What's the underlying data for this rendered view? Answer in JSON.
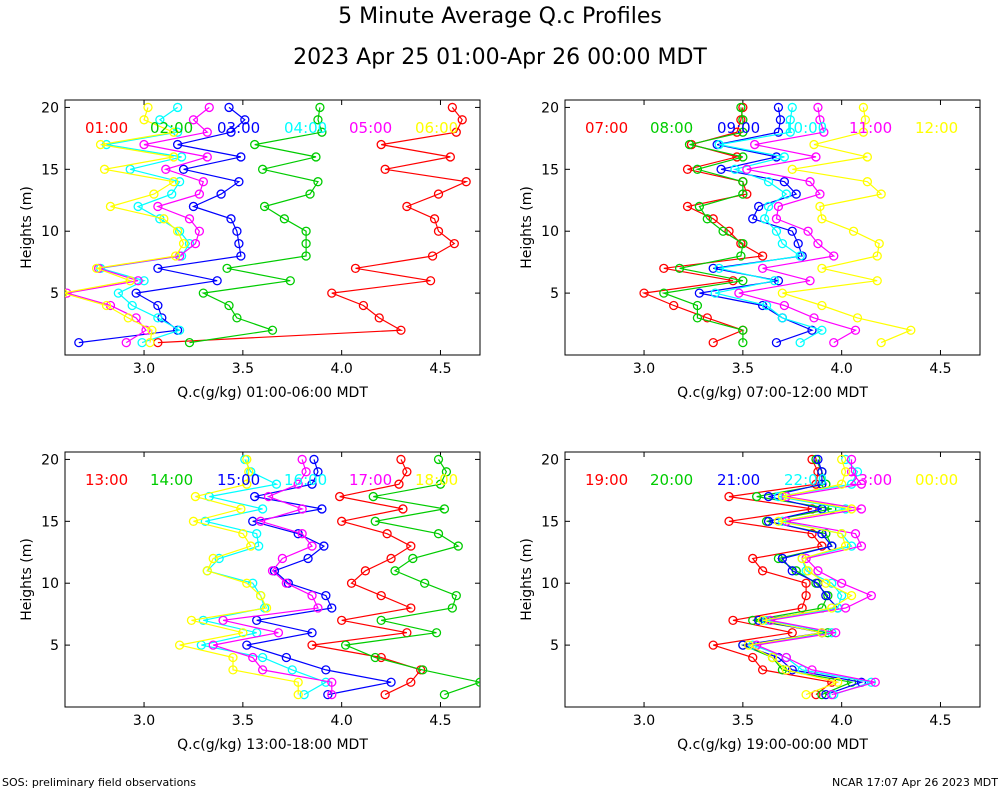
{
  "title": "5 Minute Average Q.c Profiles",
  "subtitle": "2023 Apr 25 01:00-Apr 26 00:00 MDT",
  "footer_left": "SOS: preliminary field observations",
  "footer_right": "NCAR 17:07 Apr 26 2023 MDT",
  "colors": [
    "#ff0000",
    "#00cc00",
    "#0000ff",
    "#00ffff",
    "#ff00ff",
    "#ffff00"
  ],
  "chart_data": [
    {
      "type": "line",
      "ylabel": "Heights (m)",
      "xlabel": "Q.c(g/kg) 01:00-06:00 MDT",
      "xlim": [
        2.6,
        4.7
      ],
      "ylim": [
        0,
        20.6
      ],
      "xticks": [
        3.0,
        3.5,
        4.0,
        4.5
      ],
      "xtick_labels": [
        "3.0",
        "3.5",
        "4.0",
        "4.5"
      ],
      "yticks": [
        5,
        10,
        15,
        20
      ],
      "ytick_labels": [
        "5",
        "10",
        "15",
        "20"
      ],
      "heights": [
        1,
        2,
        3,
        4,
        5,
        6,
        7,
        8,
        9,
        10,
        11,
        12,
        13,
        14,
        15,
        16,
        17,
        18,
        19,
        20
      ],
      "series": [
        {
          "name": "01:00",
          "values": [
            3.07,
            4.3,
            4.19,
            4.11,
            3.95,
            4.45,
            4.07,
            4.46,
            4.57,
            4.49,
            4.47,
            4.33,
            4.49,
            4.63,
            4.22,
            4.55,
            4.2,
            4.58,
            4.61,
            4.56
          ]
        },
        {
          "name": "02:00",
          "values": [
            3.23,
            3.65,
            3.47,
            3.43,
            3.3,
            3.74,
            3.42,
            3.82,
            3.82,
            3.82,
            3.71,
            3.61,
            3.84,
            3.88,
            3.6,
            3.87,
            3.56,
            3.9,
            3.88,
            3.89
          ]
        },
        {
          "name": "03:00",
          "values": [
            2.67,
            3.17,
            3.09,
            3.07,
            2.96,
            3.37,
            3.07,
            3.49,
            3.48,
            3.47,
            3.44,
            3.25,
            3.39,
            3.48,
            3.2,
            3.49,
            3.17,
            3.44,
            3.51,
            3.43
          ]
        },
        {
          "name": "04:00",
          "values": [
            2.99,
            3.18,
            3.07,
            2.94,
            2.87,
            3.0,
            2.78,
            3.19,
            3.23,
            3.18,
            3.08,
            2.97,
            3.14,
            3.18,
            2.93,
            3.19,
            2.81,
            3.17,
            3.08,
            3.17
          ]
        },
        {
          "name": "05:00",
          "values": [
            2.91,
            3.01,
            2.96,
            2.83,
            2.61,
            2.97,
            2.77,
            3.18,
            3.26,
            3.28,
            3.23,
            3.07,
            3.28,
            3.3,
            3.11,
            3.32,
            3.0,
            3.32,
            3.25,
            3.33
          ]
        },
        {
          "name": "06:00",
          "values": [
            3.03,
            3.04,
            2.92,
            2.81,
            2.59,
            2.93,
            2.76,
            3.16,
            3.2,
            3.17,
            3.1,
            2.83,
            3.05,
            3.15,
            2.8,
            3.15,
            2.78,
            3.15,
            3.0,
            3.02
          ]
        }
      ]
    },
    {
      "type": "line",
      "ylabel": "Heights (m)",
      "xlabel": "Q.c(g/kg) 07:00-12:00 MDT",
      "xlim": [
        2.6,
        4.7
      ],
      "ylim": [
        0,
        20.6
      ],
      "xticks": [
        3.0,
        3.5,
        4.0,
        4.5
      ],
      "xtick_labels": [
        "3.0",
        "3.5",
        "4.0",
        "4.5"
      ],
      "yticks": [
        5,
        10,
        15,
        20
      ],
      "ytick_labels": [
        "5",
        "10",
        "15",
        "20"
      ],
      "heights": [
        1,
        2,
        3,
        4,
        5,
        6,
        7,
        8,
        9,
        10,
        11,
        12,
        13,
        14,
        15,
        16,
        17,
        18,
        19,
        20
      ],
      "series": [
        {
          "name": "07:00",
          "values": [
            3.35,
            3.5,
            3.32,
            3.15,
            3.0,
            3.45,
            3.1,
            3.6,
            3.49,
            3.43,
            3.35,
            3.22,
            3.52,
            3.5,
            3.22,
            3.47,
            3.24,
            3.47,
            3.49,
            3.5
          ]
        },
        {
          "name": "08:00",
          "values": [
            3.5,
            3.5,
            3.27,
            3.27,
            3.1,
            3.5,
            3.18,
            3.49,
            3.5,
            3.4,
            3.32,
            3.28,
            3.5,
            3.5,
            3.27,
            3.5,
            3.23,
            3.5,
            3.5,
            3.49
          ]
        },
        {
          "name": "09:00",
          "values": [
            3.67,
            3.85,
            3.7,
            3.6,
            3.28,
            3.68,
            3.35,
            3.8,
            3.78,
            3.75,
            3.55,
            3.58,
            3.77,
            3.71,
            3.39,
            3.67,
            3.37,
            3.68,
            3.69,
            3.68
          ]
        },
        {
          "name": "10:00",
          "values": [
            3.79,
            3.9,
            3.7,
            3.62,
            3.36,
            3.66,
            3.38,
            3.79,
            3.7,
            3.67,
            3.61,
            3.63,
            3.72,
            3.63,
            3.46,
            3.71,
            3.38,
            3.74,
            3.74,
            3.75
          ]
        },
        {
          "name": "11:00",
          "values": [
            3.96,
            4.07,
            3.86,
            3.71,
            3.48,
            3.84,
            3.6,
            3.96,
            3.88,
            3.83,
            3.67,
            3.68,
            3.89,
            3.84,
            3.52,
            3.87,
            3.56,
            3.91,
            3.89,
            3.88
          ]
        },
        {
          "name": "12:00",
          "values": [
            4.2,
            4.35,
            4.08,
            3.9,
            3.7,
            4.18,
            3.9,
            4.18,
            4.19,
            4.06,
            3.9,
            3.89,
            4.2,
            4.13,
            3.75,
            4.13,
            3.86,
            4.11,
            4.12,
            4.11
          ]
        }
      ]
    },
    {
      "type": "line",
      "ylabel": "Heights (m)",
      "xlabel": "Q.c(g/kg) 13:00-18:00 MDT",
      "xlim": [
        2.6,
        4.7
      ],
      "ylim": [
        0,
        20.6
      ],
      "xticks": [
        3.0,
        3.5,
        4.0,
        4.5
      ],
      "xtick_labels": [
        "3.0",
        "3.5",
        "4.0",
        "4.5"
      ],
      "yticks": [
        5,
        10,
        15,
        20
      ],
      "ytick_labels": [
        "5",
        "10",
        "15",
        "20"
      ],
      "heights": [
        1,
        2,
        3,
        4,
        5,
        6,
        7,
        8,
        9,
        10,
        11,
        12,
        13,
        14,
        15,
        16,
        17,
        18,
        19,
        20
      ],
      "series": [
        {
          "name": "13:00",
          "values": [
            4.22,
            4.35,
            4.4,
            4.2,
            3.85,
            4.33,
            4.0,
            4.35,
            4.2,
            4.05,
            4.12,
            4.25,
            4.35,
            4.23,
            4.0,
            4.31,
            3.99,
            4.29,
            4.33,
            4.3
          ]
        },
        {
          "name": "14:00",
          "values": [
            4.52,
            4.7,
            4.41,
            4.17,
            4.02,
            4.48,
            4.2,
            4.56,
            4.58,
            4.42,
            4.27,
            4.36,
            4.59,
            4.49,
            4.17,
            4.52,
            4.16,
            4.5,
            4.53,
            4.49
          ]
        },
        {
          "name": "15:00",
          "values": [
            3.93,
            4.25,
            3.92,
            3.72,
            3.52,
            3.85,
            3.57,
            3.95,
            3.92,
            3.73,
            3.66,
            3.83,
            3.91,
            3.78,
            3.55,
            3.9,
            3.56,
            3.85,
            3.88,
            3.86
          ]
        },
        {
          "name": "16:00",
          "values": [
            3.81,
            3.92,
            3.75,
            3.6,
            3.29,
            3.57,
            3.3,
            3.61,
            3.59,
            3.55,
            3.32,
            3.38,
            3.58,
            3.57,
            3.31,
            3.6,
            3.33,
            3.67,
            3.54,
            3.51
          ]
        },
        {
          "name": "17:00",
          "values": [
            3.95,
            3.95,
            3.6,
            3.55,
            3.35,
            3.68,
            3.4,
            3.88,
            3.85,
            3.72,
            3.65,
            3.7,
            3.85,
            3.8,
            3.59,
            3.8,
            3.63,
            3.78,
            3.82,
            3.8
          ]
        },
        {
          "name": "18:00",
          "values": [
            3.78,
            3.78,
            3.45,
            3.45,
            3.18,
            3.5,
            3.24,
            3.62,
            3.59,
            3.52,
            3.32,
            3.35,
            3.54,
            3.5,
            3.25,
            3.49,
            3.26,
            3.52,
            3.53,
            3.52
          ]
        }
      ]
    },
    {
      "type": "line",
      "ylabel": "Heights (m)",
      "xlabel": "Q.c(g/kg) 19:00-00:00 MDT",
      "xlim": [
        2.6,
        4.7
      ],
      "ylim": [
        0,
        20.6
      ],
      "xticks": [
        3.0,
        3.5,
        4.0,
        4.5
      ],
      "xtick_labels": [
        "3.0",
        "3.5",
        "4.0",
        "4.5"
      ],
      "yticks": [
        5,
        10,
        15,
        20
      ],
      "ytick_labels": [
        "5",
        "10",
        "15",
        "20"
      ],
      "heights": [
        1,
        2,
        3,
        4,
        5,
        6,
        7,
        8,
        9,
        10,
        11,
        12,
        13,
        14,
        15,
        16,
        17,
        18,
        19,
        20
      ],
      "series": [
        {
          "name": "19:00",
          "values": [
            3.87,
            3.95,
            3.6,
            3.55,
            3.35,
            3.75,
            3.45,
            3.8,
            3.82,
            3.82,
            3.6,
            3.55,
            3.9,
            3.85,
            3.43,
            3.85,
            3.43,
            3.87,
            3.88,
            3.85
          ]
        },
        {
          "name": "20:00",
          "values": [
            3.9,
            4.05,
            3.7,
            3.65,
            3.5,
            3.93,
            3.55,
            3.9,
            3.93,
            3.87,
            3.77,
            3.68,
            3.95,
            3.92,
            3.62,
            3.95,
            3.57,
            3.92,
            3.9,
            3.87
          ]
        },
        {
          "name": "21:00",
          "values": [
            3.92,
            4.1,
            3.75,
            3.68,
            3.5,
            3.9,
            3.58,
            3.98,
            3.92,
            3.88,
            3.75,
            3.7,
            3.95,
            3.9,
            3.63,
            3.9,
            3.63,
            3.9,
            3.9,
            3.88
          ]
        },
        {
          "name": "22:00",
          "values": [
            3.96,
            4.15,
            3.8,
            3.72,
            3.55,
            3.95,
            3.62,
            3.98,
            4.0,
            3.95,
            3.82,
            3.8,
            4.05,
            4.0,
            3.7,
            4.02,
            3.68,
            4.05,
            4.08,
            4.02
          ]
        },
        {
          "name": "23:00",
          "values": [
            3.95,
            4.17,
            3.85,
            3.72,
            3.57,
            3.97,
            3.64,
            4.02,
            4.15,
            4.0,
            3.88,
            3.82,
            4.1,
            4.07,
            3.72,
            4.1,
            3.72,
            4.1,
            4.05,
            4.05
          ]
        },
        {
          "name": "00:00",
          "values": [
            3.82,
            3.98,
            3.72,
            3.65,
            3.53,
            3.9,
            3.6,
            3.95,
            4.05,
            3.92,
            3.83,
            3.8,
            4.02,
            4.0,
            3.68,
            4.05,
            3.7,
            4.0,
            4.02,
            4.0
          ]
        }
      ]
    }
  ]
}
